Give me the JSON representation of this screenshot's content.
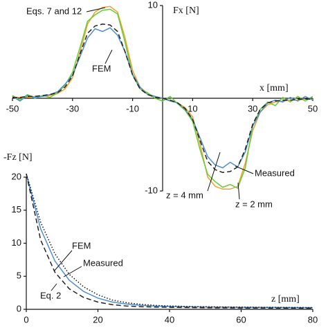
{
  "chart_data": [
    {
      "type": "line",
      "y_label": "Fx [N]",
      "x_label": "x [mm]",
      "annotations": [
        "Eqs. 7 and 12",
        "FEM",
        "Measured",
        "z = 4 mm",
        "z = 2 mm"
      ],
      "x": [
        -50,
        -47.5,
        -45,
        -42.5,
        -40,
        -37.5,
        -35,
        -32.5,
        -30,
        -27.5,
        -25,
        -22.5,
        -20,
        -17.5,
        -15,
        -12.5,
        -10,
        -7.5,
        -5,
        -2.5,
        0,
        2.5,
        5,
        7.5,
        10,
        12.5,
        15,
        17.5,
        20,
        22.5,
        25,
        27.5,
        30,
        32.5,
        35,
        37.5,
        40,
        42.5,
        45,
        47.5,
        50
      ],
      "series": [
        {
          "color": "#f0a030",
          "dash": "solid",
          "values": [
            0.1,
            0.1,
            0.1,
            0.2,
            0.2,
            0.3,
            0.5,
            1,
            2.2,
            5,
            8,
            9.3,
            9.8,
            9.9,
            9.3,
            6.5,
            3,
            1.2,
            0.5,
            0.2,
            0,
            -0.2,
            -0.5,
            -1,
            -2,
            -5,
            -8.5,
            -9.5,
            -9.8,
            -9.8,
            -9.5,
            -7,
            -3.5,
            -1.5,
            -0.7,
            -0.4,
            -0.3,
            -0.2,
            -0.2,
            -0.1,
            -0.1
          ]
        },
        {
          "color": "#66cc33",
          "dash": "solid",
          "values": [
            0.3,
            -0.2,
            0.4,
            0,
            0.3,
            0.1,
            0.6,
            1.4,
            2.8,
            5.5,
            8.3,
            9,
            9.5,
            9.6,
            9.1,
            6,
            2.5,
            1,
            0.6,
            0,
            -0.3,
            0.2,
            -0.6,
            -1.3,
            -2.5,
            -5.6,
            -8.2,
            -9,
            -9.6,
            -9.3,
            -9.7,
            -7.5,
            -3,
            -1.2,
            -0.4,
            -0.8,
            0.1,
            -0.4,
            0.2,
            -0.3,
            0.2
          ]
        },
        {
          "color": "#4f8fd0",
          "dash": "solid",
          "values": [
            0.2,
            -0.3,
            0.3,
            0.1,
            0.2,
            0.4,
            0.7,
            1.5,
            2.5,
            4.5,
            6.5,
            7.5,
            7.2,
            7.6,
            6.8,
            5,
            2.6,
            1.2,
            0.4,
            0.2,
            0,
            -0.3,
            -0.5,
            -1.2,
            -2.3,
            -4.3,
            -6.3,
            -7.2,
            -7.5,
            -6.9,
            -7.4,
            -5.8,
            -3,
            -1.5,
            -0.5,
            -0.2,
            -0.4,
            0.1,
            -0.3,
            0.2,
            -0.2
          ]
        },
        {
          "color": "#222222",
          "dash": "dashed",
          "values": [
            0.1,
            0.1,
            0.2,
            0.2,
            0.3,
            0.4,
            0.6,
            1.2,
            2.4,
            4.8,
            7,
            7.8,
            8,
            7.9,
            7.2,
            5,
            2.5,
            1,
            0.4,
            0.1,
            0,
            -0.2,
            -0.5,
            -1.1,
            -2.3,
            -4.6,
            -6.8,
            -7.7,
            -8,
            -7.9,
            -7.4,
            -5.5,
            -2.8,
            -1.2,
            -0.5,
            -0.3,
            -0.2,
            -0.2,
            -0.1,
            -0.1,
            -0.1
          ]
        }
      ],
      "xlim": [
        -50,
        50
      ],
      "ylim": [
        -10,
        10
      ],
      "xticks": [
        -50,
        -30,
        -10,
        10,
        30,
        50
      ],
      "yticks": [
        10,
        -10
      ]
    },
    {
      "type": "line",
      "y_label": "-Fz [N]",
      "x_label": "z [mm]",
      "annotations": [
        "FEM",
        "Measured",
        "Eq. 2"
      ],
      "x": [
        0,
        4,
        8,
        12,
        16,
        20,
        24,
        28,
        32,
        36,
        40,
        44,
        48,
        52,
        56,
        60,
        64,
        68,
        72,
        76,
        80
      ],
      "series": [
        {
          "color": "#4f8fd0",
          "dash": "solid",
          "values": [
            20.5,
            12.2,
            7.3,
            4.4,
            2.7,
            1.7,
            1.1,
            0.8,
            0.6,
            0.5,
            0.45,
            0.4,
            0.38,
            0.35,
            0.33,
            0.3,
            0.3,
            0.28,
            0.27,
            0.26,
            0.25
          ]
        },
        {
          "color": "#111111",
          "dash": "dotted",
          "values": [
            20.5,
            13.2,
            8.4,
            5.3,
            3.4,
            2.2,
            1.4,
            1,
            0.75,
            0.6,
            0.5,
            0.45,
            0.4,
            0.38,
            0.35,
            0.33,
            0.3,
            0.3,
            0.28,
            0.27,
            0.26
          ]
        },
        {
          "color": "#222222",
          "dash": "dashed",
          "values": [
            20.5,
            10.5,
            5.6,
            3.1,
            1.8,
            1.1,
            0.7,
            0.5,
            0.4,
            0.33,
            0.3,
            0.27,
            0.25,
            0.23,
            0.22,
            0.2,
            0.2,
            0.19,
            0.18,
            0.18,
            0.17
          ]
        }
      ],
      "xlim": [
        0,
        80
      ],
      "ylim": [
        0,
        20
      ],
      "xticks": [
        0,
        20,
        40,
        60,
        80
      ],
      "yticks": [
        0,
        5,
        10,
        15,
        20
      ]
    }
  ]
}
